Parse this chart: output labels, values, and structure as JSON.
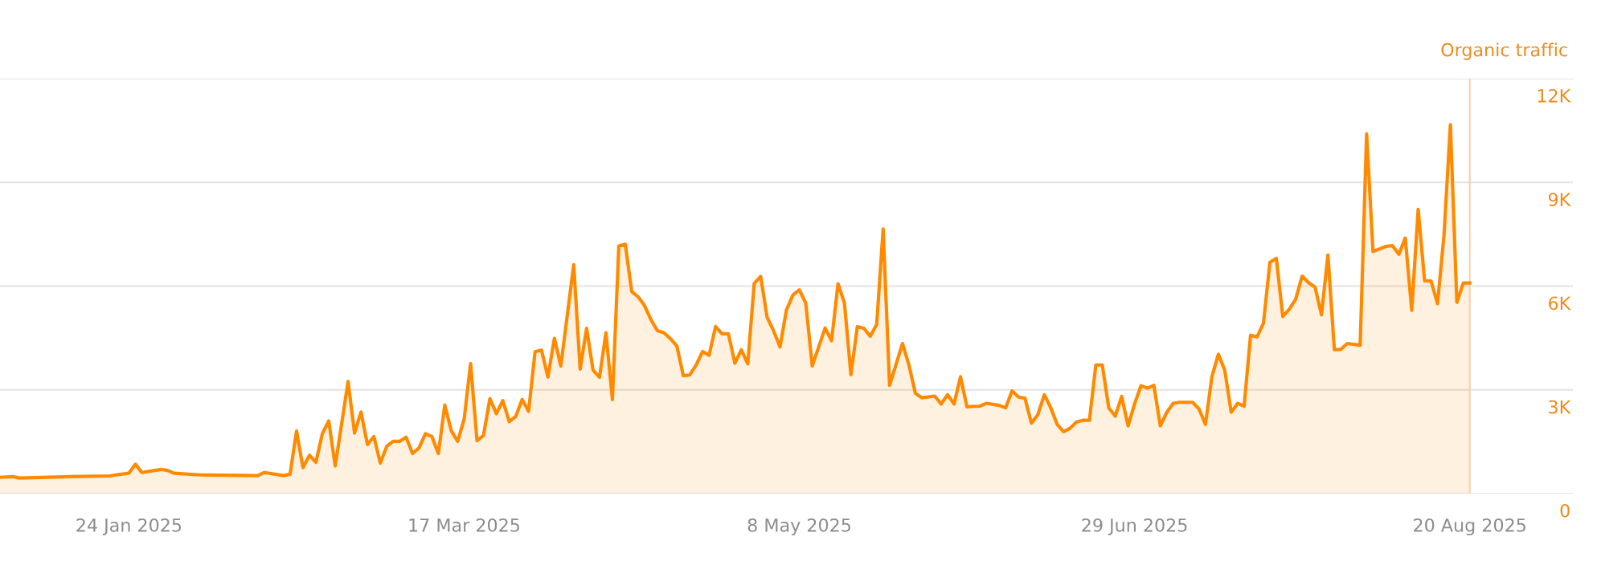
{
  "chart_data": {
    "type": "area",
    "x": [
      "2025-01-04",
      "2025-01-06",
      "2025-01-07",
      "2025-01-15",
      "2025-01-21",
      "2025-01-22",
      "2025-01-24",
      "2025-01-25",
      "2025-01-26",
      "2025-01-29",
      "2025-01-30",
      "2025-01-31",
      "2025-02-04",
      "2025-02-13",
      "2025-02-14",
      "2025-02-17",
      "2025-02-18",
      "2025-02-19",
      "2025-02-20",
      "2025-02-21",
      "2025-02-22",
      "2025-02-23",
      "2025-02-24",
      "2025-02-25",
      "2025-02-27",
      "2025-02-28",
      "2025-03-01",
      "2025-03-02",
      "2025-03-03",
      "2025-03-04",
      "2025-03-05",
      "2025-03-06",
      "2025-03-07",
      "2025-03-08",
      "2025-03-09",
      "2025-03-10",
      "2025-03-11",
      "2025-03-12",
      "2025-03-13",
      "2025-03-14",
      "2025-03-15",
      "2025-03-16",
      "2025-03-17",
      "2025-03-18",
      "2025-03-19",
      "2025-03-20",
      "2025-03-21",
      "2025-03-22",
      "2025-03-23",
      "2025-03-24",
      "2025-03-25",
      "2025-03-26",
      "2025-03-27",
      "2025-03-28",
      "2025-03-29",
      "2025-03-30",
      "2025-03-31",
      "2025-04-01",
      "2025-04-03",
      "2025-04-04",
      "2025-04-05",
      "2025-04-06",
      "2025-04-07",
      "2025-04-08",
      "2025-04-09",
      "2025-04-10",
      "2025-04-11",
      "2025-04-12",
      "2025-04-13",
      "2025-04-14",
      "2025-04-15",
      "2025-04-16",
      "2025-04-17",
      "2025-04-18",
      "2025-04-19",
      "2025-04-20",
      "2025-04-21",
      "2025-04-22",
      "2025-04-23",
      "2025-04-24",
      "2025-04-25",
      "2025-04-26",
      "2025-04-27",
      "2025-04-28",
      "2025-04-29",
      "2025-04-30",
      "2025-05-01",
      "2025-05-02",
      "2025-05-03",
      "2025-05-04",
      "2025-05-05",
      "2025-05-06",
      "2025-05-07",
      "2025-05-08",
      "2025-05-09",
      "2025-05-10",
      "2025-05-11",
      "2025-05-12",
      "2025-05-13",
      "2025-05-14",
      "2025-05-15",
      "2025-05-16",
      "2025-05-17",
      "2025-05-18",
      "2025-05-19",
      "2025-05-20",
      "2025-05-21",
      "2025-05-22",
      "2025-05-24",
      "2025-05-25",
      "2025-05-26",
      "2025-05-27",
      "2025-05-29",
      "2025-05-30",
      "2025-05-31",
      "2025-06-01",
      "2025-06-02",
      "2025-06-03",
      "2025-06-05",
      "2025-06-06",
      "2025-06-08",
      "2025-06-09",
      "2025-06-10",
      "2025-06-11",
      "2025-06-12",
      "2025-06-13",
      "2025-06-14",
      "2025-06-15",
      "2025-06-16",
      "2025-06-17",
      "2025-06-18",
      "2025-06-19",
      "2025-06-20",
      "2025-06-21",
      "2025-06-22",
      "2025-06-23",
      "2025-06-24",
      "2025-06-25",
      "2025-06-26",
      "2025-06-27",
      "2025-06-28",
      "2025-06-29",
      "2025-06-30",
      "2025-07-01",
      "2025-07-02",
      "2025-07-03",
      "2025-07-04",
      "2025-07-05",
      "2025-07-06",
      "2025-07-08",
      "2025-07-09",
      "2025-07-10",
      "2025-07-11",
      "2025-07-12",
      "2025-07-13",
      "2025-07-14",
      "2025-07-15",
      "2025-07-16",
      "2025-07-17",
      "2025-07-18",
      "2025-07-19",
      "2025-07-20",
      "2025-07-21",
      "2025-07-22",
      "2025-07-23",
      "2025-07-24",
      "2025-07-25",
      "2025-07-26",
      "2025-07-27",
      "2025-07-28",
      "2025-07-29",
      "2025-07-30",
      "2025-07-31",
      "2025-08-01",
      "2025-08-03",
      "2025-08-04",
      "2025-08-05",
      "2025-08-07",
      "2025-08-08",
      "2025-08-09",
      "2025-08-10",
      "2025-08-11",
      "2025-08-12",
      "2025-08-13",
      "2025-08-14",
      "2025-08-15",
      "2025-08-16",
      "2025-08-17",
      "2025-08-18",
      "2025-08-19",
      "2025-08-20"
    ],
    "series": [
      {
        "color": "#ff8a00",
        "values": [
          470,
          490,
          450,
          490,
          510,
          540,
          590,
          850,
          610,
          700,
          670,
          590,
          540,
          520,
          610,
          520,
          560,
          1810,
          750,
          1110,
          900,
          1730,
          2100,
          800,
          3240,
          1750,
          2360,
          1420,
          1650,
          880,
          1370,
          1510,
          1510,
          1630,
          1160,
          1320,
          1730,
          1650,
          1160,
          2560,
          1820,
          1510,
          2150,
          3760,
          1530,
          1680,
          2750,
          2310,
          2690,
          2080,
          2230,
          2720,
          2380,
          4100,
          4150,
          3370,
          4490,
          3690,
          6620,
          3600,
          4780,
          3570,
          3360,
          4650,
          2720,
          7160,
          7210,
          5840,
          5690,
          5430,
          5020,
          4710,
          4650,
          4480,
          4270,
          3410,
          3430,
          3720,
          4110,
          4000,
          4830,
          4620,
          4620,
          3770,
          4160,
          3750,
          6080,
          6280,
          5100,
          4710,
          4240,
          5310,
          5740,
          5890,
          5510,
          3690,
          4240,
          4790,
          4420,
          6070,
          5510,
          3440,
          4830,
          4780,
          4550,
          4890,
          7650,
          3130,
          4340,
          3720,
          2900,
          2770,
          2820,
          2590,
          2860,
          2590,
          3380,
          2510,
          2530,
          2610,
          2550,
          2480,
          2970,
          2790,
          2760,
          2040,
          2280,
          2860,
          2480,
          2000,
          1790,
          1890,
          2070,
          2120,
          2120,
          3720,
          3720,
          2480,
          2240,
          2810,
          1960,
          2590,
          3120,
          3050,
          3130,
          1960,
          2350,
          2610,
          2640,
          2640,
          2450,
          2000,
          3380,
          4030,
          3570,
          2350,
          2610,
          2530,
          4580,
          4530,
          4930,
          6690,
          6800,
          5120,
          5330,
          5620,
          6290,
          6100,
          5970,
          5170,
          6900,
          4160,
          4170,
          4340,
          4290,
          10400,
          7000,
          7150,
          7170,
          6920,
          7390,
          5300,
          8220,
          6150,
          6150,
          5490,
          7460,
          10670,
          5530,
          6090,
          6090
        ]
      }
    ],
    "ylabel": "Organic traffic",
    "xlim": [
      "2025-01-04",
      "2025-09-05"
    ],
    "xticks": [
      {
        "value": "2025-01-24",
        "label": "24 Jan 2025"
      },
      {
        "value": "2025-03-17",
        "label": "17 Mar 2025"
      },
      {
        "value": "2025-05-08",
        "label": "8 May 2025"
      },
      {
        "value": "2025-06-29",
        "label": "29 Jun 2025"
      },
      {
        "value": "2025-08-20",
        "label": "20 Aug 2025"
      }
    ],
    "ylim": [
      0,
      12000
    ],
    "yticks": [
      0,
      {
        "value": 3000,
        "label": "3K"
      },
      {
        "value": 6000,
        "label": "6K"
      },
      {
        "value": 9000,
        "label": "9K"
      },
      {
        "value": 12000,
        "label": "12K"
      }
    ],
    "ref_lines": [
      {
        "axis": "x",
        "value": "2025-08-20",
        "color": "#f7cfa6"
      }
    ],
    "grid": "y"
  }
}
